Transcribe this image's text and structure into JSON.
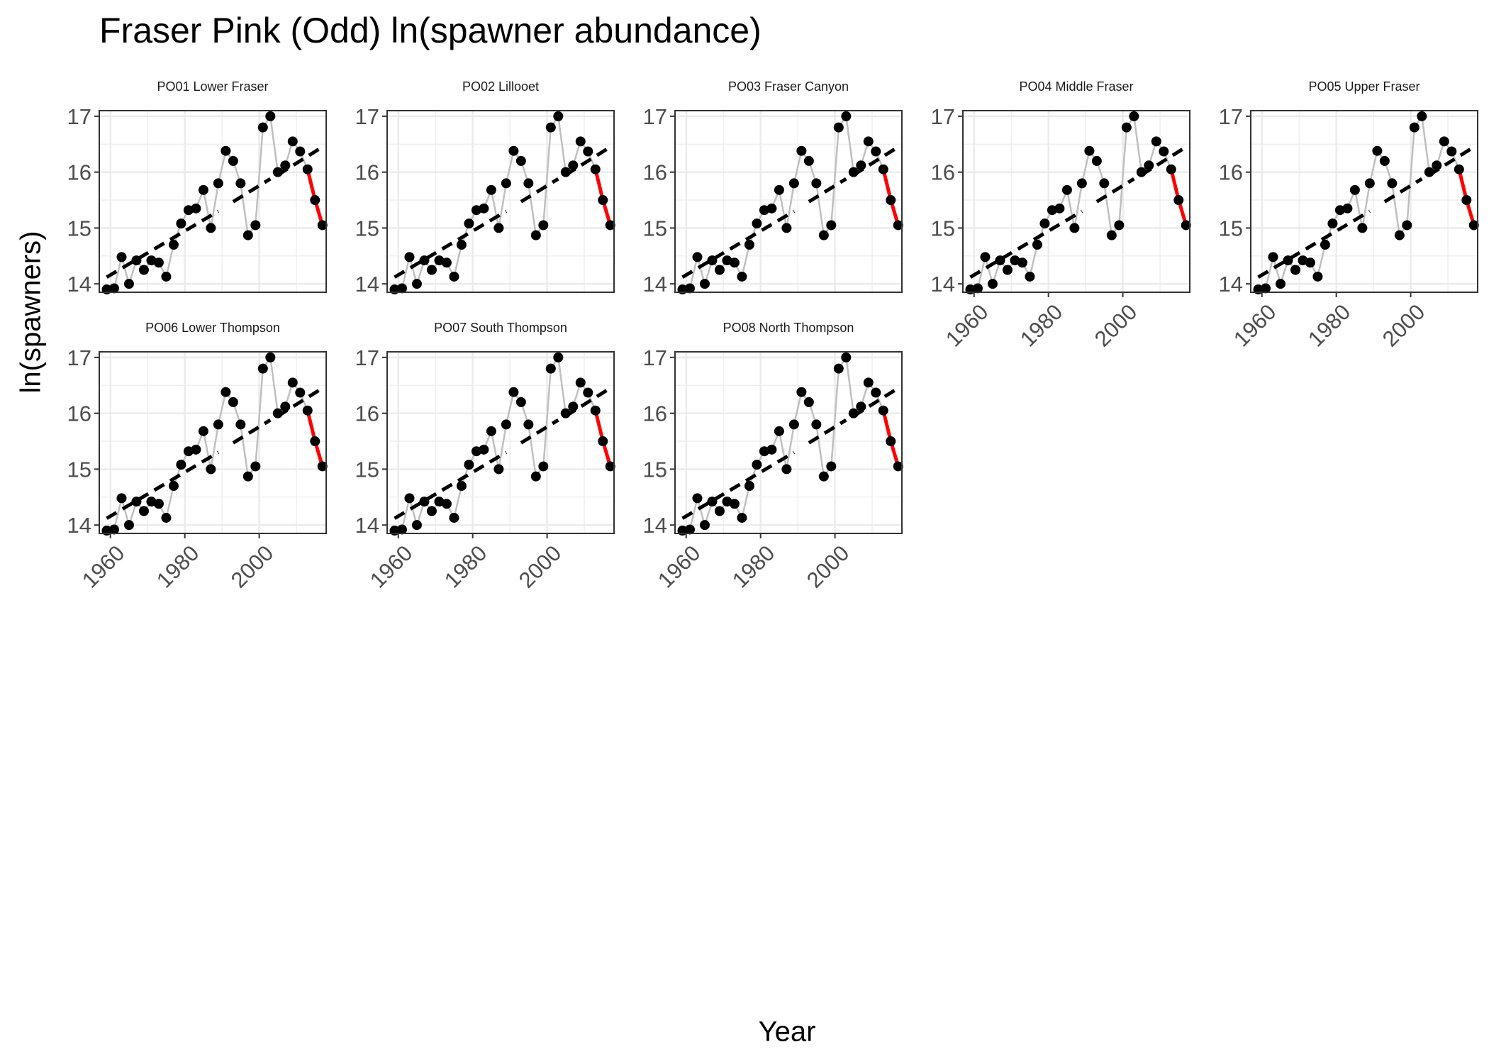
{
  "chart": {
    "title": "Fraser Pink (Odd) ln(spawner abundance)",
    "xlabel": "Year",
    "ylabel": "ln(spawners)"
  },
  "colors": {
    "points": "#000000",
    "connecting_line": "#bfbfbf",
    "trend_dashed": "#000000",
    "recent_segment": "#ff0000",
    "grid": "#ebebeb",
    "panel_border": "#333333",
    "background": "#ffffff"
  },
  "chart_data": {
    "type": "line",
    "facet_layout": "5 columns, 2 rows; x-axis tick labels shown on bottom panel of each column",
    "grid": true,
    "legend": "none",
    "xlim": [
      1957,
      2018
    ],
    "ylim": [
      13.85,
      17.1
    ],
    "x_ticks": [
      1960,
      1980,
      2000
    ],
    "y_ticks": [
      14,
      15,
      16,
      17
    ],
    "x": [
      1959,
      1961,
      1963,
      1965,
      1967,
      1969,
      1971,
      1973,
      1975,
      1977,
      1979,
      1981,
      1983,
      1985,
      1987,
      1989,
      1991,
      1993,
      1995,
      1997,
      1999,
      2001,
      2003,
      2005,
      2007,
      2009,
      2011,
      2013,
      2015,
      2017
    ],
    "y": [
      13.9,
      13.92,
      14.48,
      14.0,
      14.42,
      14.25,
      14.42,
      14.38,
      14.13,
      14.7,
      15.08,
      15.32,
      15.35,
      15.68,
      15.0,
      15.8,
      16.38,
      16.2,
      15.8,
      14.87,
      15.05,
      16.8,
      17.0,
      16.0,
      16.12,
      16.55,
      16.37,
      16.05,
      15.5,
      15.05
    ],
    "trend_segments": [
      {
        "x": [
          1959,
          1989
        ],
        "y": [
          14.12,
          15.3
        ]
      },
      {
        "x": [
          1993,
          2003
        ],
        "y": [
          15.47,
          15.88
        ]
      },
      {
        "x": [
          2005,
          2017
        ],
        "y": [
          15.95,
          16.45
        ]
      }
    ],
    "recent_decline": {
      "x": [
        2013,
        2015,
        2017
      ],
      "y": [
        16.05,
        15.5,
        15.05
      ]
    },
    "panels": [
      {
        "label": "PO01 Lower Fraser"
      },
      {
        "label": "PO02 Lillooet"
      },
      {
        "label": "PO03 Fraser Canyon"
      },
      {
        "label": "PO04 Middle Fraser"
      },
      {
        "label": "PO05 Upper Fraser"
      },
      {
        "label": "PO06 Lower Thompson"
      },
      {
        "label": "PO07 South Thompson"
      },
      {
        "label": "PO08 North Thompson"
      }
    ]
  }
}
